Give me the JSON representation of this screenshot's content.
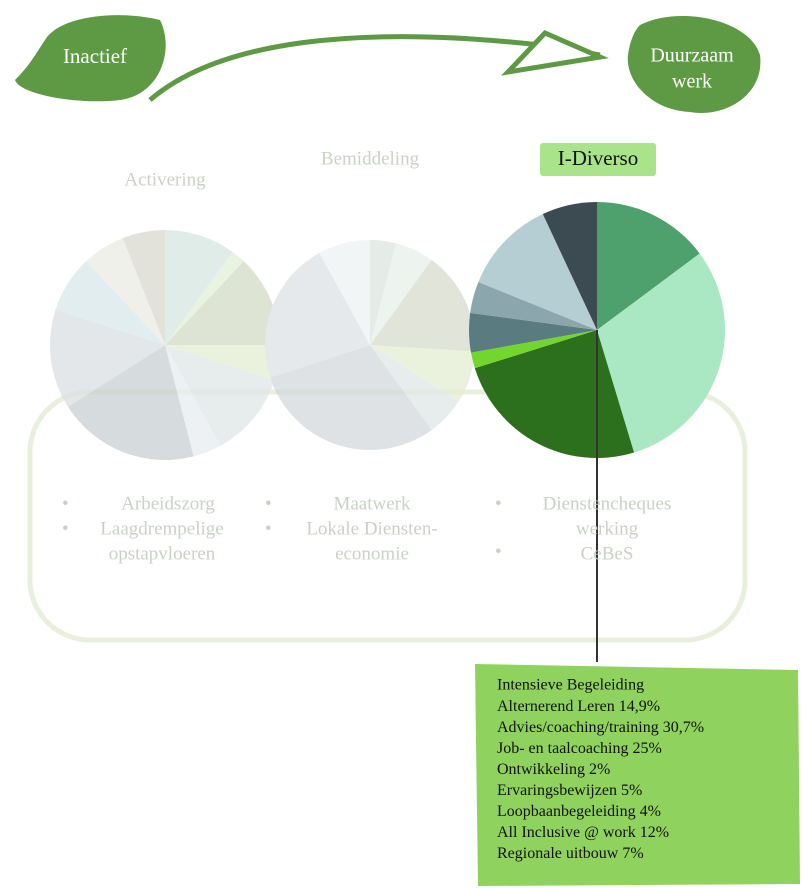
{
  "header": {
    "start": "Inactief",
    "end_lines": [
      "Duurzaam",
      "werk"
    ]
  },
  "columns": [
    {
      "title": "Activering",
      "items": [
        [
          "Arbeidszorg"
        ],
        [
          "Laagdrempelige",
          "opstapvloeren"
        ]
      ]
    },
    {
      "title": "Bemiddeling",
      "items": [
        [
          "Maatwerk"
        ],
        [
          "Lokale Diensten-",
          "economie"
        ]
      ]
    },
    {
      "items": [
        [
          "Dienstencheques",
          "werking"
        ],
        [
          "CeBeS"
        ]
      ]
    }
  ],
  "chart_data": {
    "type": "pie",
    "title": "I-Diverso",
    "legend_title": "Intensieve Begeleiding",
    "categories": [
      "Alternerend Leren",
      "Advies/coaching/training",
      "Job- en taalcoaching",
      "Ontwikkeling",
      "Ervaringsbewijzen",
      "Loopbaanbegeleiding",
      "All Inclusive @ work",
      "Regionale uitbouw"
    ],
    "values": [
      14.9,
      30.7,
      25,
      2,
      5,
      4,
      12,
      7
    ],
    "value_labels": [
      "14,9%",
      "30,7%",
      "25%",
      "2%",
      "5%",
      "4%",
      "12%",
      "7%"
    ],
    "colors": [
      "#4ea06c",
      "#a9e8c2",
      "#2c6f1c",
      "#72d62c",
      "#5a7b80",
      "#8ba7ad",
      "#b5ced3",
      "#3b4b51"
    ]
  }
}
